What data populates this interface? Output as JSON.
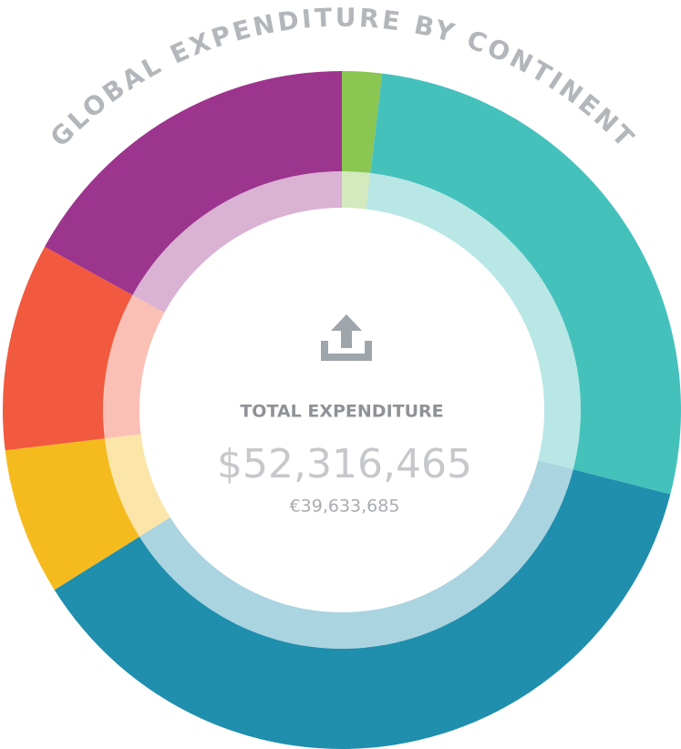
{
  "chart_data": {
    "type": "pie",
    "donut": true,
    "title": "GLOBAL EXPENDITURE BY CONTINENT",
    "categories": [
      null,
      null,
      null,
      null,
      null,
      null
    ],
    "values": [
      1.9,
      27.1,
      37.1,
      7.0,
      9.9,
      17.0
    ],
    "colors": [
      "#8bc653",
      "#45c1bc",
      "#1f8fad",
      "#f5bb1e",
      "#f15a3e",
      "#9c358d"
    ],
    "center_label": "TOTAL EXPENDITURE",
    "center_value": "$52,316,465",
    "center_subvalue": "€39,633,685"
  }
}
